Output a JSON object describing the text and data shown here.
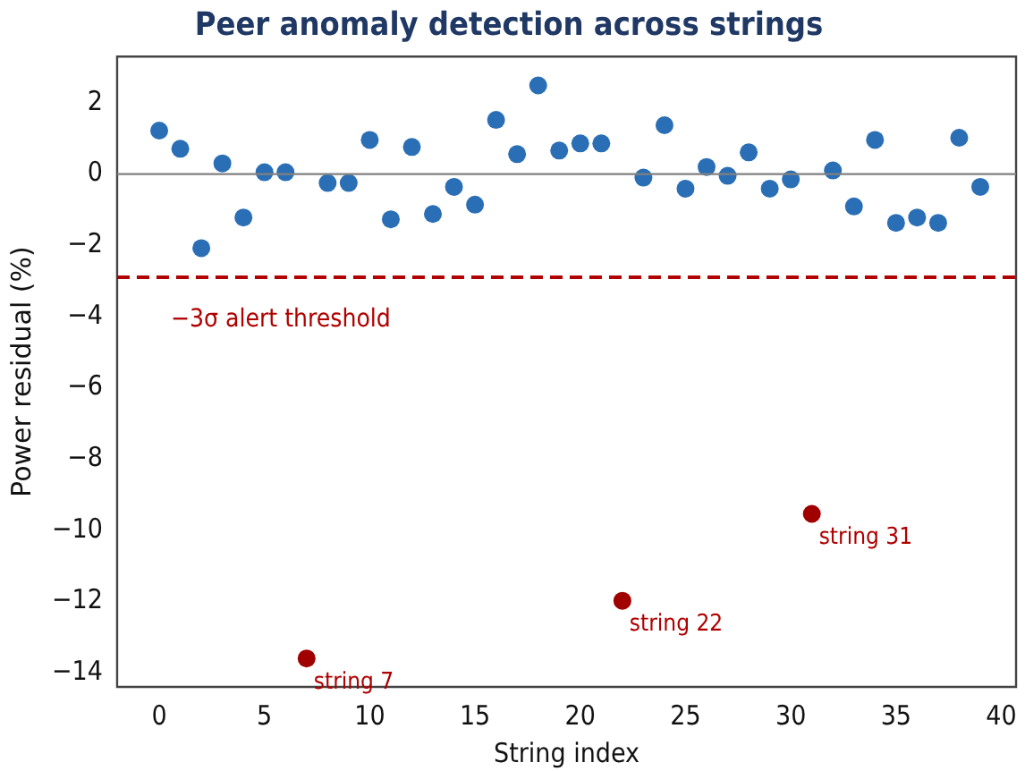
{
  "chart_data": {
    "type": "scatter",
    "title": "Peer anomaly detection across strings",
    "xlabel": "String index",
    "ylabel": "Power residual (%)",
    "xlim": [
      -2,
      40.7
    ],
    "xticks": [
      0,
      5,
      10,
      15,
      20,
      25,
      30,
      35,
      40
    ],
    "ylim": [
      -14.4,
      3.3
    ],
    "yticks": [
      2,
      0,
      {
        "value": -2,
        "label": "−2"
      },
      {
        "value": -4,
        "label": "−4"
      },
      {
        "value": -6,
        "label": "−6"
      },
      {
        "value": -8,
        "label": "−8"
      },
      {
        "value": -10,
        "label": "−10"
      },
      {
        "value": -12,
        "label": "−12"
      },
      {
        "value": -14,
        "label": "−14"
      }
    ],
    "series": [
      {
        "color": "#2a6fb5",
        "x": [
          0,
          1,
          2,
          3,
          4,
          5,
          6,
          8,
          9,
          10,
          11,
          12,
          13,
          14,
          15,
          16,
          17,
          18,
          19,
          20,
          21,
          23,
          24,
          25,
          26,
          27,
          28,
          29,
          30,
          32,
          33,
          34,
          35,
          36,
          37,
          38,
          39
        ],
        "values": [
          1.22,
          0.71,
          -2.08,
          0.3,
          -1.22,
          0.05,
          0.05,
          -0.25,
          -0.25,
          0.96,
          -1.27,
          0.76,
          -1.12,
          -0.36,
          -0.86,
          1.52,
          0.56,
          2.49,
          0.66,
          0.86,
          0.86,
          -0.1,
          1.37,
          -0.41,
          0.2,
          -0.05,
          0.61,
          -0.41,
          -0.15,
          0.1,
          -0.91,
          0.96,
          -1.37,
          -1.22,
          -1.37,
          1.02,
          -0.36
        ]
      },
      {
        "color": "#a00000",
        "x": [
          7,
          22,
          31
        ],
        "values": [
          -13.6,
          -11.98,
          -9.54
        ]
      }
    ],
    "ref_lines": [
      {
        "axis": "y",
        "value": 0,
        "color": "#808080",
        "line_style": "solid"
      },
      {
        "axis": "y",
        "value": -2.9,
        "label": "−3σ alert threshold",
        "color": "#b00000",
        "line_style": "dashed"
      }
    ],
    "annotations": [
      {
        "text": "string 7",
        "x": 7,
        "y": -13.6
      },
      {
        "text": "string 22",
        "x": 22,
        "y": -11.98
      },
      {
        "text": "string 31",
        "x": 31,
        "y": -9.54
      }
    ],
    "marker": "circle",
    "legend": false,
    "grid": false
  }
}
